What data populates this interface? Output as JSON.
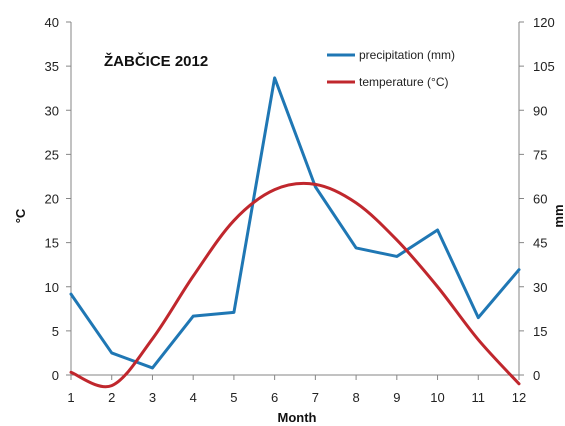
{
  "chart_data": {
    "type": "line",
    "title": "ŽABČICE  2012",
    "xlabel": "Month",
    "ylabel_left": "°C",
    "ylabel_right": "mm",
    "x": [
      1,
      2,
      3,
      4,
      5,
      6,
      7,
      8,
      9,
      10,
      11,
      12
    ],
    "ylim_left": [
      0,
      40
    ],
    "yticks_left": [
      0,
      5,
      10,
      15,
      20,
      25,
      30,
      35,
      40
    ],
    "ylim_right": [
      0,
      120
    ],
    "yticks_right": [
      0,
      15,
      30,
      45,
      60,
      75,
      90,
      105,
      120
    ],
    "series": [
      {
        "name": "precipitation (mm)",
        "axis": "right",
        "color": "#1f77b4",
        "smooth": false,
        "values": [
          27.5,
          7.5,
          2.4,
          20,
          21.3,
          101,
          64,
          43.2,
          40.3,
          49.3,
          19.5,
          35.8
        ]
      },
      {
        "name": "temperature (°C)",
        "axis": "left",
        "color": "#c0272d",
        "smooth": true,
        "values": [
          0.3,
          -1.2,
          4.1,
          11.2,
          17.5,
          21.0,
          21.6,
          19.5,
          15.3,
          10.0,
          4.0,
          -1.0
        ]
      }
    ],
    "legend_position": "top-right",
    "grid": false
  }
}
